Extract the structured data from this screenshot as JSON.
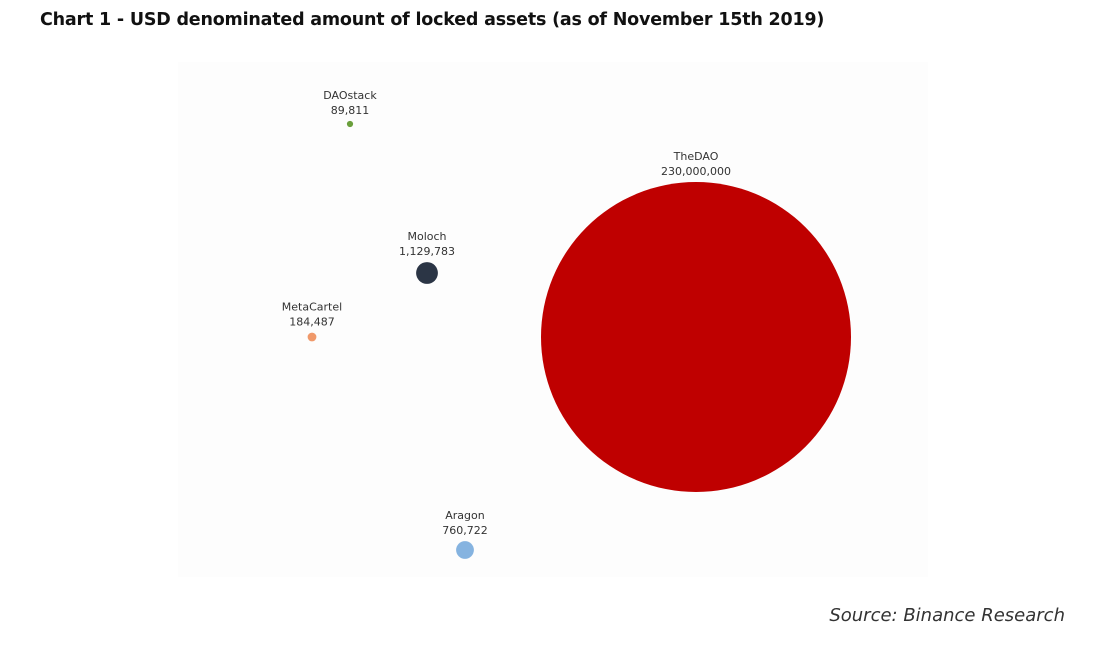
{
  "title": "Chart 1 - USD denominated amount of locked assets (as of November 15th 2019)",
  "source": "Source: Binance Research",
  "chart_data": {
    "type": "bubble",
    "value_unit": "USD",
    "points": [
      {
        "name": "DAOstack",
        "value": 89811,
        "value_label": "89,811",
        "color": "#6a9f3c"
      },
      {
        "name": "Moloch",
        "value": 1129783,
        "value_label": "1,129,783",
        "color": "#2b3545"
      },
      {
        "name": "MetaCartel",
        "value": 184487,
        "value_label": "184,487",
        "color": "#f0996a"
      },
      {
        "name": "TheDAO",
        "value": 230000000,
        "value_label": "230,000,000",
        "color": "#bf0000"
      },
      {
        "name": "Aragon",
        "value": 760722,
        "value_label": "760,722",
        "color": "#85b3e0"
      }
    ]
  }
}
